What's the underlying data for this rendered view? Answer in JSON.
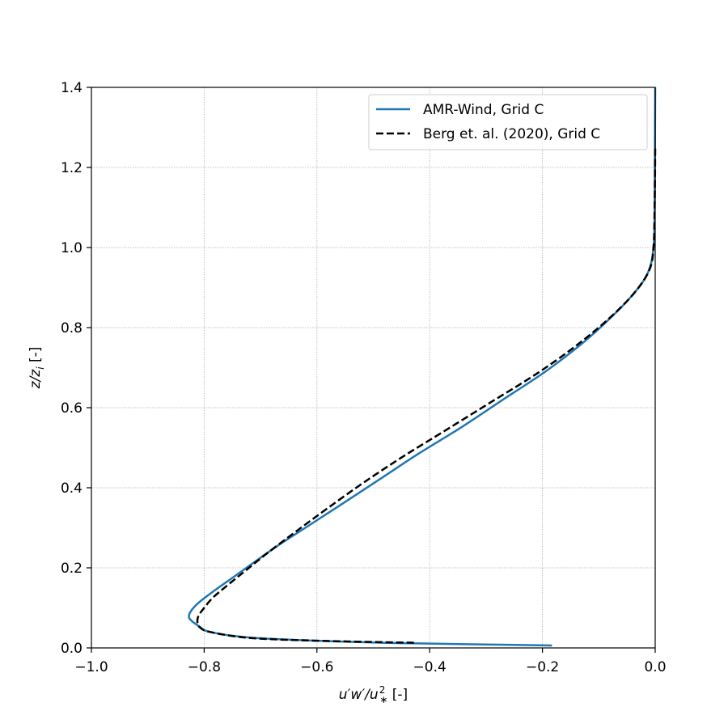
{
  "chart_data": {
    "type": "line",
    "xlabel": {
      "main": "u′w′/u",
      "sub": "∗",
      "sup": "2",
      "unit": " [-]"
    },
    "ylabel": {
      "main": "z/z",
      "sub": "i",
      "unit": " [-]"
    },
    "xlim": [
      -1.0,
      0.0
    ],
    "ylim": [
      0.0,
      1.4
    ],
    "x_ticks": [
      -1.0,
      -0.8,
      -0.6,
      -0.4,
      -0.2,
      0.0
    ],
    "x_tick_labels": [
      "−1.0",
      "−0.8",
      "−0.6",
      "−0.4",
      "−0.2",
      "0.0"
    ],
    "y_ticks": [
      0.0,
      0.2,
      0.4,
      0.6,
      0.8,
      1.0,
      1.2,
      1.4
    ],
    "y_tick_labels": [
      "0.0",
      "0.2",
      "0.4",
      "0.6",
      "0.8",
      "1.0",
      "1.2",
      "1.4"
    ],
    "grid": true,
    "legend_position": "top-right",
    "series": [
      {
        "name": "AMR-Wind, Grid C",
        "color": "#1f77b4",
        "style": "solid",
        "x": [
          -0.183,
          -0.45,
          -0.6,
          -0.72,
          -0.79,
          -0.81,
          -0.824,
          -0.827,
          -0.822,
          -0.808,
          -0.785,
          -0.755,
          -0.715,
          -0.67,
          -0.615,
          -0.555,
          -0.49,
          -0.42,
          -0.345,
          -0.27,
          -0.195,
          -0.13,
          -0.075,
          -0.035,
          -0.012,
          -0.003,
          -0.001,
          -0.0005,
          0.0
        ],
        "y": [
          0.006,
          0.012,
          0.018,
          0.026,
          0.04,
          0.055,
          0.07,
          0.08,
          0.095,
          0.115,
          0.14,
          0.17,
          0.21,
          0.255,
          0.305,
          0.36,
          0.42,
          0.485,
          0.55,
          0.62,
          0.69,
          0.76,
          0.83,
          0.89,
          0.94,
          1.0,
          1.1,
          1.25,
          1.4
        ]
      },
      {
        "name": "Berg et. al. (2020), Grid C",
        "color": "#000000",
        "style": "dashed",
        "x": [
          -0.428,
          -0.6,
          -0.72,
          -0.79,
          -0.808,
          -0.812,
          -0.81,
          -0.8,
          -0.785,
          -0.76,
          -0.725,
          -0.685,
          -0.638,
          -0.58,
          -0.515,
          -0.445,
          -0.37,
          -0.29,
          -0.21,
          -0.14,
          -0.08,
          -0.035,
          -0.01,
          -0.003,
          -0.001,
          0.0
        ],
        "y": [
          0.013,
          0.018,
          0.025,
          0.04,
          0.052,
          0.065,
          0.08,
          0.1,
          0.125,
          0.155,
          0.195,
          0.24,
          0.29,
          0.35,
          0.415,
          0.48,
          0.545,
          0.615,
          0.685,
          0.755,
          0.825,
          0.89,
          0.945,
          1.0,
          1.1,
          1.25
        ]
      }
    ]
  }
}
